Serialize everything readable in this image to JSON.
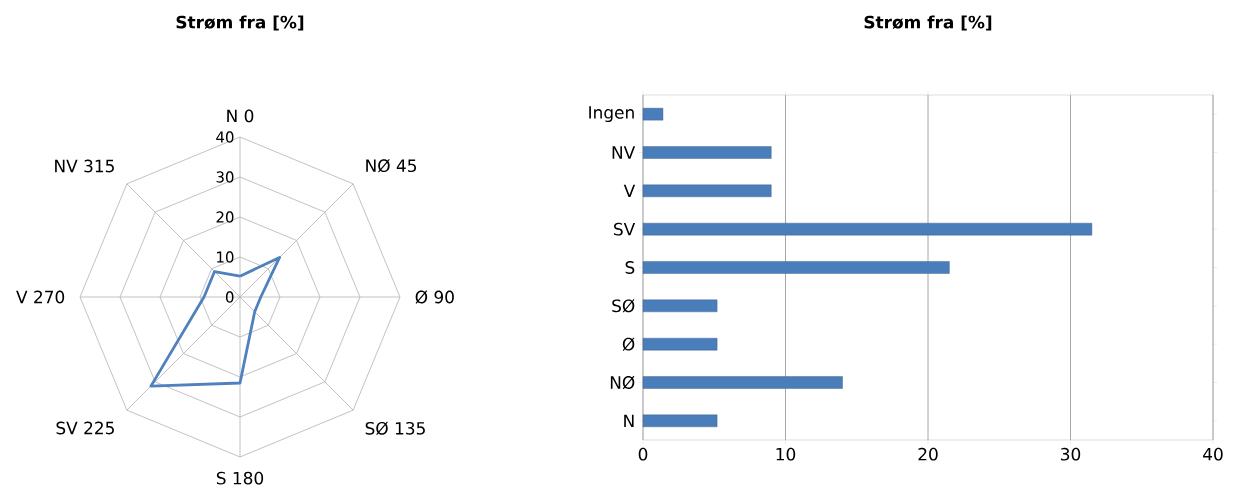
{
  "chart_data": [
    {
      "type": "radar",
      "title": "Strøm fra [%]",
      "categories": [
        "N 0",
        "NØ 45",
        "Ø 90",
        "SØ 135",
        "S 180",
        "SV 225",
        "V 270",
        "NV 315"
      ],
      "series": [
        {
          "color": "#4f81bd",
          "values": [
            5.2,
            14,
            5.2,
            5.2,
            21.5,
            31.5,
            9,
            9
          ]
        }
      ],
      "ylim": [
        0,
        40
      ],
      "yticks": [
        0,
        10,
        20,
        30,
        40
      ],
      "grid": true,
      "marker": "none"
    },
    {
      "type": "bar",
      "orientation": "horizontal",
      "title": "Strøm fra [%]",
      "categories": [
        "Ingen",
        "NV",
        "V",
        "SV",
        "S",
        "SØ",
        "Ø",
        "NØ",
        "N"
      ],
      "values": [
        1.4,
        9,
        9,
        31.5,
        21.5,
        5.2,
        5.2,
        14,
        5.2
      ],
      "color": "#4a7ebb",
      "xlim": [
        0,
        40
      ],
      "xticks": [
        0,
        10,
        20,
        30,
        40
      ],
      "grid": "x"
    }
  ]
}
